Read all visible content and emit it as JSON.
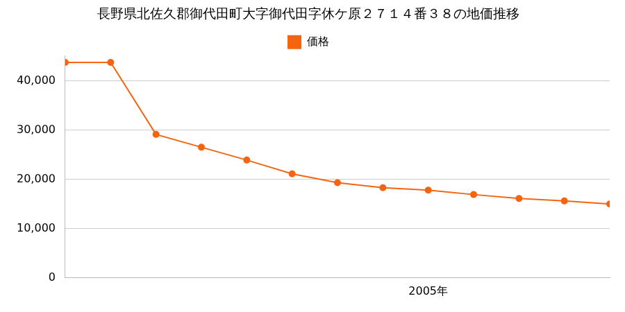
{
  "chart_data": {
    "type": "line",
    "title": "長野県北佐久郡御代田町大字御代田字休ケ原２７１４番３８の地価推移",
    "categories": [
      null,
      null,
      null,
      null,
      null,
      null,
      null,
      null,
      "2005年",
      null,
      null,
      null,
      null
    ],
    "series": [
      {
        "name": "価格",
        "color": "#f5640f",
        "marker": "circle",
        "values": [
          43700,
          43700,
          29100,
          26500,
          23900,
          21100,
          19300,
          18300,
          17800,
          16900,
          16100,
          15600,
          15000
        ]
      }
    ],
    "ylim": [
      0,
      45000
    ],
    "yticks": [
      0,
      {
        "value": 10000,
        "label": "10,000"
      },
      {
        "value": 20000,
        "label": "20,000"
      },
      {
        "value": 30000,
        "label": "30,000"
      },
      {
        "value": 40000,
        "label": "40,000"
      }
    ],
    "grid": true,
    "legend": "top"
  }
}
